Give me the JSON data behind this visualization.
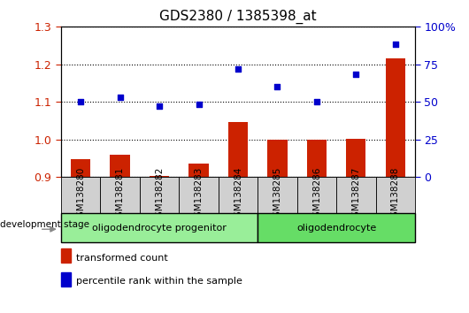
{
  "title": "GDS2380 / 1385398_at",
  "samples": [
    "GSM138280",
    "GSM138281",
    "GSM138282",
    "GSM138283",
    "GSM138284",
    "GSM138285",
    "GSM138286",
    "GSM138287",
    "GSM138288"
  ],
  "bar_values": [
    0.948,
    0.958,
    0.903,
    0.935,
    1.045,
    1.0,
    0.998,
    1.002,
    1.215
  ],
  "dot_values": [
    50,
    53,
    47,
    48,
    72,
    60,
    50,
    68,
    88
  ],
  "ylim_left": [
    0.9,
    1.3
  ],
  "ylim_right": [
    0,
    100
  ],
  "left_yticks": [
    0.9,
    1.0,
    1.1,
    1.2,
    1.3
  ],
  "right_yticks": [
    0,
    25,
    50,
    75,
    100
  ],
  "bar_color": "#cc2200",
  "dot_color": "#0000cc",
  "groups": [
    {
      "label": "oligodendrocyte progenitor",
      "indices": [
        0,
        1,
        2,
        3,
        4
      ],
      "color": "#99ee99"
    },
    {
      "label": "oligodendrocyte",
      "indices": [
        5,
        6,
        7,
        8
      ],
      "color": "#66dd66"
    }
  ],
  "dev_stage_label": "development stage",
  "legend_items": [
    {
      "label": "transformed count",
      "color": "#cc2200"
    },
    {
      "label": "percentile rank within the sample",
      "color": "#0000cc"
    }
  ],
  "fig_width": 5.3,
  "fig_height": 3.54
}
